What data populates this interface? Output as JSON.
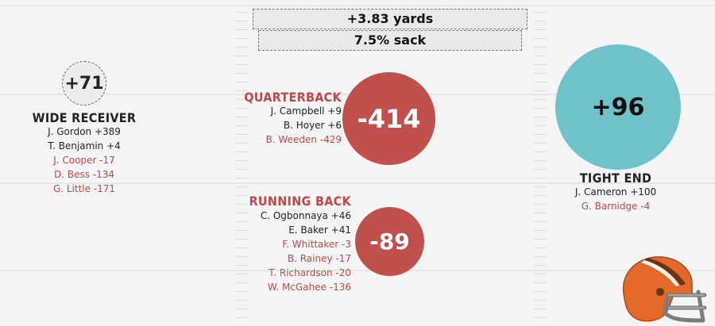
{
  "colors": {
    "negative": "#c0484a",
    "positive_circle": "#6fc3c8",
    "negative_circle": "#c0504c",
    "neutral_circle": "#ececec"
  },
  "summary": {
    "yards": "+3.83 yards",
    "sack": "7.5% sack"
  },
  "wide_receiver": {
    "score": "+71",
    "title": "WIDE RECEIVER",
    "players": [
      {
        "text": "J. Gordon +389",
        "negative": false
      },
      {
        "text": "T. Benjamin +4",
        "negative": false
      },
      {
        "text": "J. Cooper -17",
        "negative": true
      },
      {
        "text": "D. Bess -134",
        "negative": true
      },
      {
        "text": "G. Little -171",
        "negative": true
      }
    ]
  },
  "quarterback": {
    "score": "-414",
    "title": "QUARTERBACK",
    "players": [
      {
        "text": "J. Campbell +9",
        "negative": false
      },
      {
        "text": "B. Hoyer +6",
        "negative": false
      },
      {
        "text": "B. Weeden -429",
        "negative": true
      }
    ]
  },
  "running_back": {
    "score": "-89",
    "title": "RUNNING BACK",
    "players": [
      {
        "text": "C. Ogbonnaya +46",
        "negative": false
      },
      {
        "text": "E. Baker +41",
        "negative": false
      },
      {
        "text": "F. Whittaker -3",
        "negative": true
      },
      {
        "text": "B. Rainey -17",
        "negative": true
      },
      {
        "text": "T. Richardson -20",
        "negative": true
      },
      {
        "text": "W. McGahee -136",
        "negative": true
      }
    ]
  },
  "tight_end": {
    "score": "+96",
    "title": "TIGHT END",
    "players": [
      {
        "text": "J. Cameron +100",
        "negative": false
      },
      {
        "text": "G. Barnidge -4",
        "negative": true
      }
    ]
  },
  "logo": {
    "icon": "football-helmet-icon"
  }
}
